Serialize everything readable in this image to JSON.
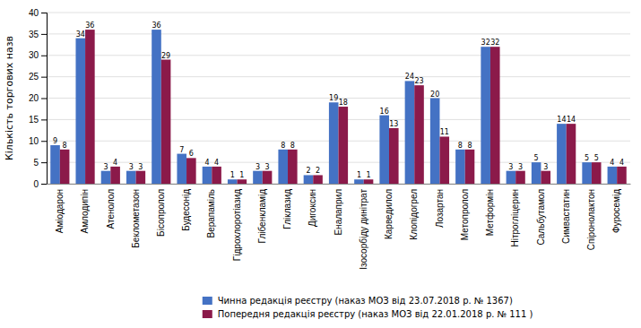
{
  "chart_data": {
    "type": "bar",
    "categories": [
      "Аміодарон",
      "Амлодипін",
      "Атенолол",
      "Беклометазон",
      "Бісопролол",
      "Будесонід",
      "Верапаміль",
      "Гідрохлоротіазид",
      "Глібенкламід",
      "Гліклазид",
      "Дигоксин",
      "Еналаприл",
      "Ізосорбіду динітрат",
      "Карведилол",
      "Клопідогрел",
      "Лозартан",
      "Метопролол",
      "Метформін",
      "Нітрогліцерин",
      "Сальбутамол",
      "Симвастатин",
      "Спіронолактон",
      "Фуросемід"
    ],
    "series": [
      {
        "name": "Чинна редакція реєстру (наказ МОЗ від 23.07.2018 р. № 1367)",
        "color": "#4472C4",
        "values": [
          9,
          34,
          3,
          3,
          36,
          7,
          4,
          1,
          3,
          8,
          2,
          19,
          1,
          16,
          24,
          20,
          8,
          32,
          3,
          5,
          14,
          5,
          4
        ]
      },
      {
        "name": "Попередня редакція реєстру (наказ МОЗ від 22.01.2018 р. № 111 )",
        "color": "#8B1A4A",
        "values": [
          8,
          36,
          4,
          3,
          29,
          6,
          4,
          1,
          3,
          8,
          2,
          18,
          1,
          13,
          23,
          11,
          8,
          32,
          3,
          3,
          14,
          5,
          4
        ]
      }
    ],
    "ylabel": "Кількість торгових назв",
    "ylim": [
      0,
      40
    ],
    "yticks": [
      0,
      5,
      10,
      15,
      20,
      25,
      30,
      35,
      40
    ],
    "grid": true,
    "data_labels": true,
    "legend": "bottom"
  }
}
